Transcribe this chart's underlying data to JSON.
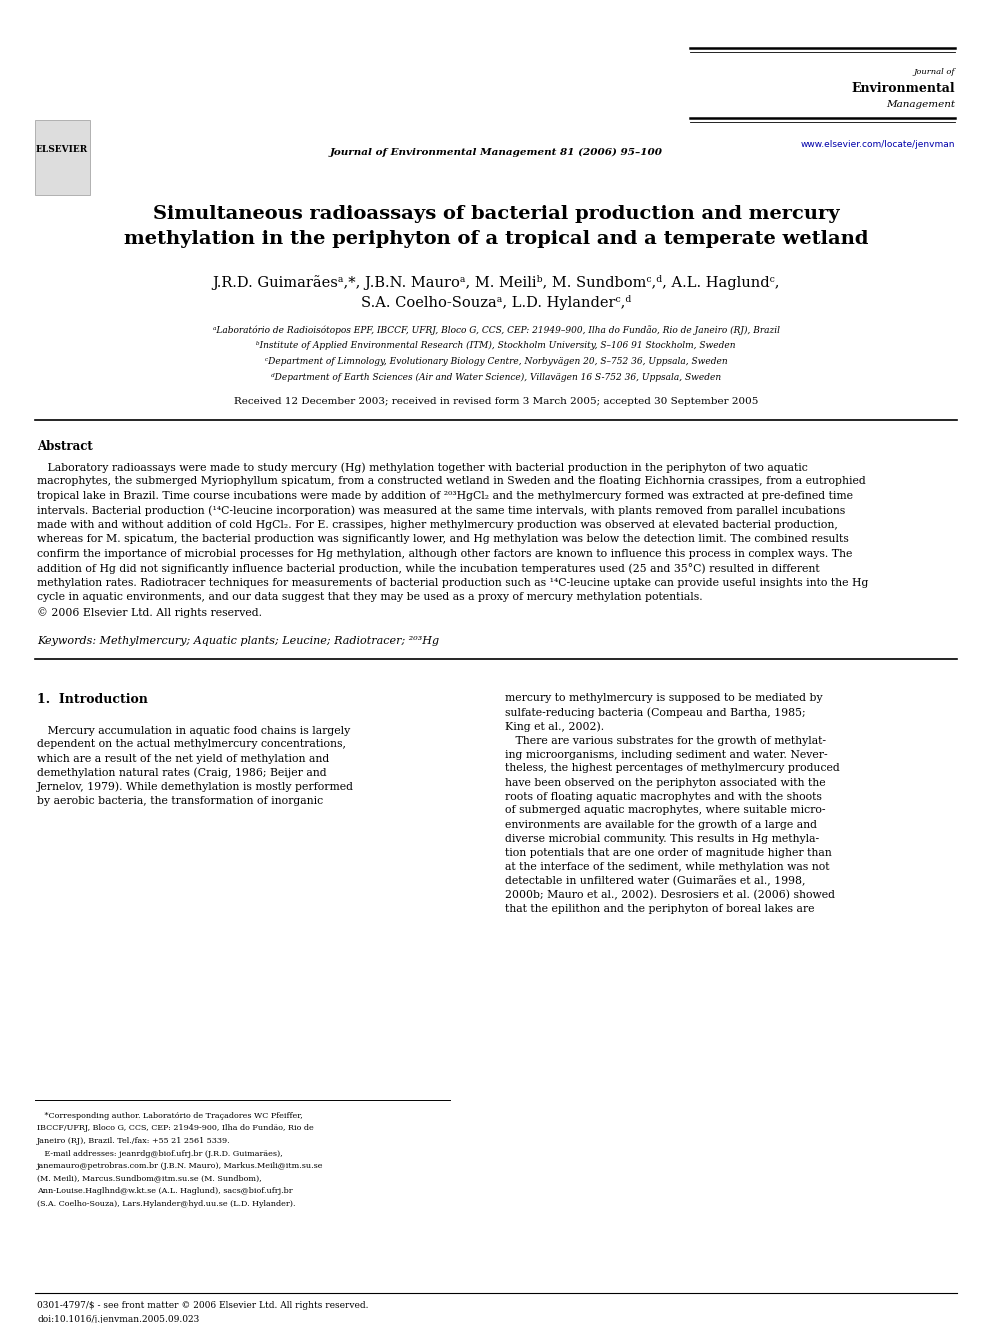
{
  "bg_color": "#ffffff",
  "fig_width": 9.92,
  "fig_height": 13.23,
  "dpi": 100,
  "header": {
    "journal_center": "Journal of Environmental Management 81 (2006) 95–100",
    "journal_right_line1": "Journal of",
    "journal_right_line2": "Environmental",
    "journal_right_line3": "Management",
    "website": "www.elsevier.com/locate/jenvman"
  },
  "title_line1": "Simultaneous radioassays of bacterial production and mercury",
  "title_line2": "methylation in the periphyton of a tropical and a temperate wetland",
  "author_line1": "J.R.D. Guimarãesᵃ,*, J.B.N. Mauroᵃ, M. Meiliᵇ, M. Sundbomᶜ,ᵈ, A.L. Haglundᶜ,",
  "author_line2": "S.A. Coelho-Souzaᵃ, L.D. Hylanderᶜ,ᵈ",
  "affiliations": [
    "ᵃLaboratório de Radioisótopos EPF, IBCCF, UFRJ, Bloco G, CCS, CEP: 21949–900, Ilha do Fundão, Rio de Janeiro (RJ), Brazil",
    "ᵇInstitute of Applied Environmental Research (ITM), Stockholm University, S–106 91 Stockholm, Sweden",
    "ᶜDepartment of Limnology, Evolutionary Biology Centre, Norbyvägen 20, S–752 36, Uppsala, Sweden",
    "ᵈDepartment of Earth Sciences (Air and Water Science), Villavägen 16 S-752 36, Uppsala, Sweden"
  ],
  "received": "Received 12 December 2003; received in revised form 3 March 2005; accepted 30 September 2005",
  "abstract_title": "Abstract",
  "abstract_lines": [
    "   Laboratory radioassays were made to study mercury (Hg) methylation together with bacterial production in the periphyton of two aquatic",
    "macrophytes, the submerged Myriophyllum spicatum, from a constructed wetland in Sweden and the floating Eichhornia crassipes, from a eutrophied",
    "tropical lake in Brazil. Time course incubations were made by addition of ²⁰³HgCl₂ and the methylmercury formed was extracted at pre-defined time",
    "intervals. Bacterial production (¹⁴C-leucine incorporation) was measured at the same time intervals, with plants removed from parallel incubations",
    "made with and without addition of cold HgCl₂. For E. crassipes, higher methylmercury production was observed at elevated bacterial production,",
    "whereas for M. spicatum, the bacterial production was significantly lower, and Hg methylation was below the detection limit. The combined results",
    "confirm the importance of microbial processes for Hg methylation, although other factors are known to influence this process in complex ways. The",
    "addition of Hg did not significantly influence bacterial production, while the incubation temperatures used (25 and 35°C) resulted in different",
    "methylation rates. Radiotracer techniques for measurements of bacterial production such as ¹⁴C-leucine uptake can provide useful insights into the Hg",
    "cycle in aquatic environments, and our data suggest that they may be used as a proxy of mercury methylation potentials.",
    "© 2006 Elsevier Ltd. All rights reserved."
  ],
  "keywords": "Keywords: Methylmercury; Aquatic plants; Leucine; Radiotracer; ²⁰³Hg",
  "section1_title": "1.  Introduction",
  "intro_left_lines": [
    "   Mercury accumulation in aquatic food chains is largely",
    "dependent on the actual methylmercury concentrations,",
    "which are a result of the net yield of methylation and",
    "demethylation natural rates (Craig, 1986; Beijer and",
    "Jernelov, 1979). While demethylation is mostly performed",
    "by aerobic bacteria, the transformation of inorganic"
  ],
  "intro_right_lines": [
    "mercury to methylmercury is supposed to be mediated by",
    "sulfate-reducing bacteria (Compeau and Bartha, 1985;",
    "King et al., 2002).",
    "   There are various substrates for the growth of methylat-",
    "ing microorganisms, including sediment and water. Never-",
    "theless, the highest percentages of methylmercury produced",
    "have been observed on the periphyton associated with the",
    "roots of floating aquatic macrophytes and with the shoots",
    "of submerged aquatic macrophytes, where suitable micro-",
    "environments are available for the growth of a large and",
    "diverse microbial community. This results in Hg methyla-",
    "tion potentials that are one order of magnitude higher than",
    "at the interface of the sediment, while methylation was not",
    "detectable in unfiltered water (Guimarães et al., 1998,",
    "2000b; Mauro et al., 2002). Desrosiers et al. (2006) showed",
    "that the epilithon and the periphyton of boreal lakes are"
  ],
  "footnote_lines": [
    "   *Corresponding author. Laboratório de Traçadores WC Pfeiffer,",
    "IBCCF/UFRJ, Bloco G, CCS, CEP: 21949-900, Ilha do Fundão, Rio de",
    "Janeiro (RJ), Brazil. Tel./fax: +55 21 2561 5339.",
    "   E-mail addresses: jeanrdg@biof.ufrj.br (J.R.D. Guimarães),",
    "janemauro@petrobras.com.br (J.B.N. Mauro), Markus.Meili@itm.su.se",
    "(M. Meili), Marcus.Sundbom@itm.su.se (M. Sundbom),",
    "Ann-Louise.Haglhnd@w.kt.se (A.L. Haglund), sacs@biof.ufrj.br",
    "(S.A. Coelho-Souza), Lars.Hylander@hyd.uu.se (L.D. Hylander)."
  ],
  "bottom_copyright": "0301-4797/$ - see front matter © 2006 Elsevier Ltd. All rights reserved.",
  "bottom_doi": "doi:10.1016/j.jenvman.2005.09.023",
  "colors": {
    "black": "#000000",
    "blue_link": "#0000aa",
    "gray_logo": "#888888"
  }
}
